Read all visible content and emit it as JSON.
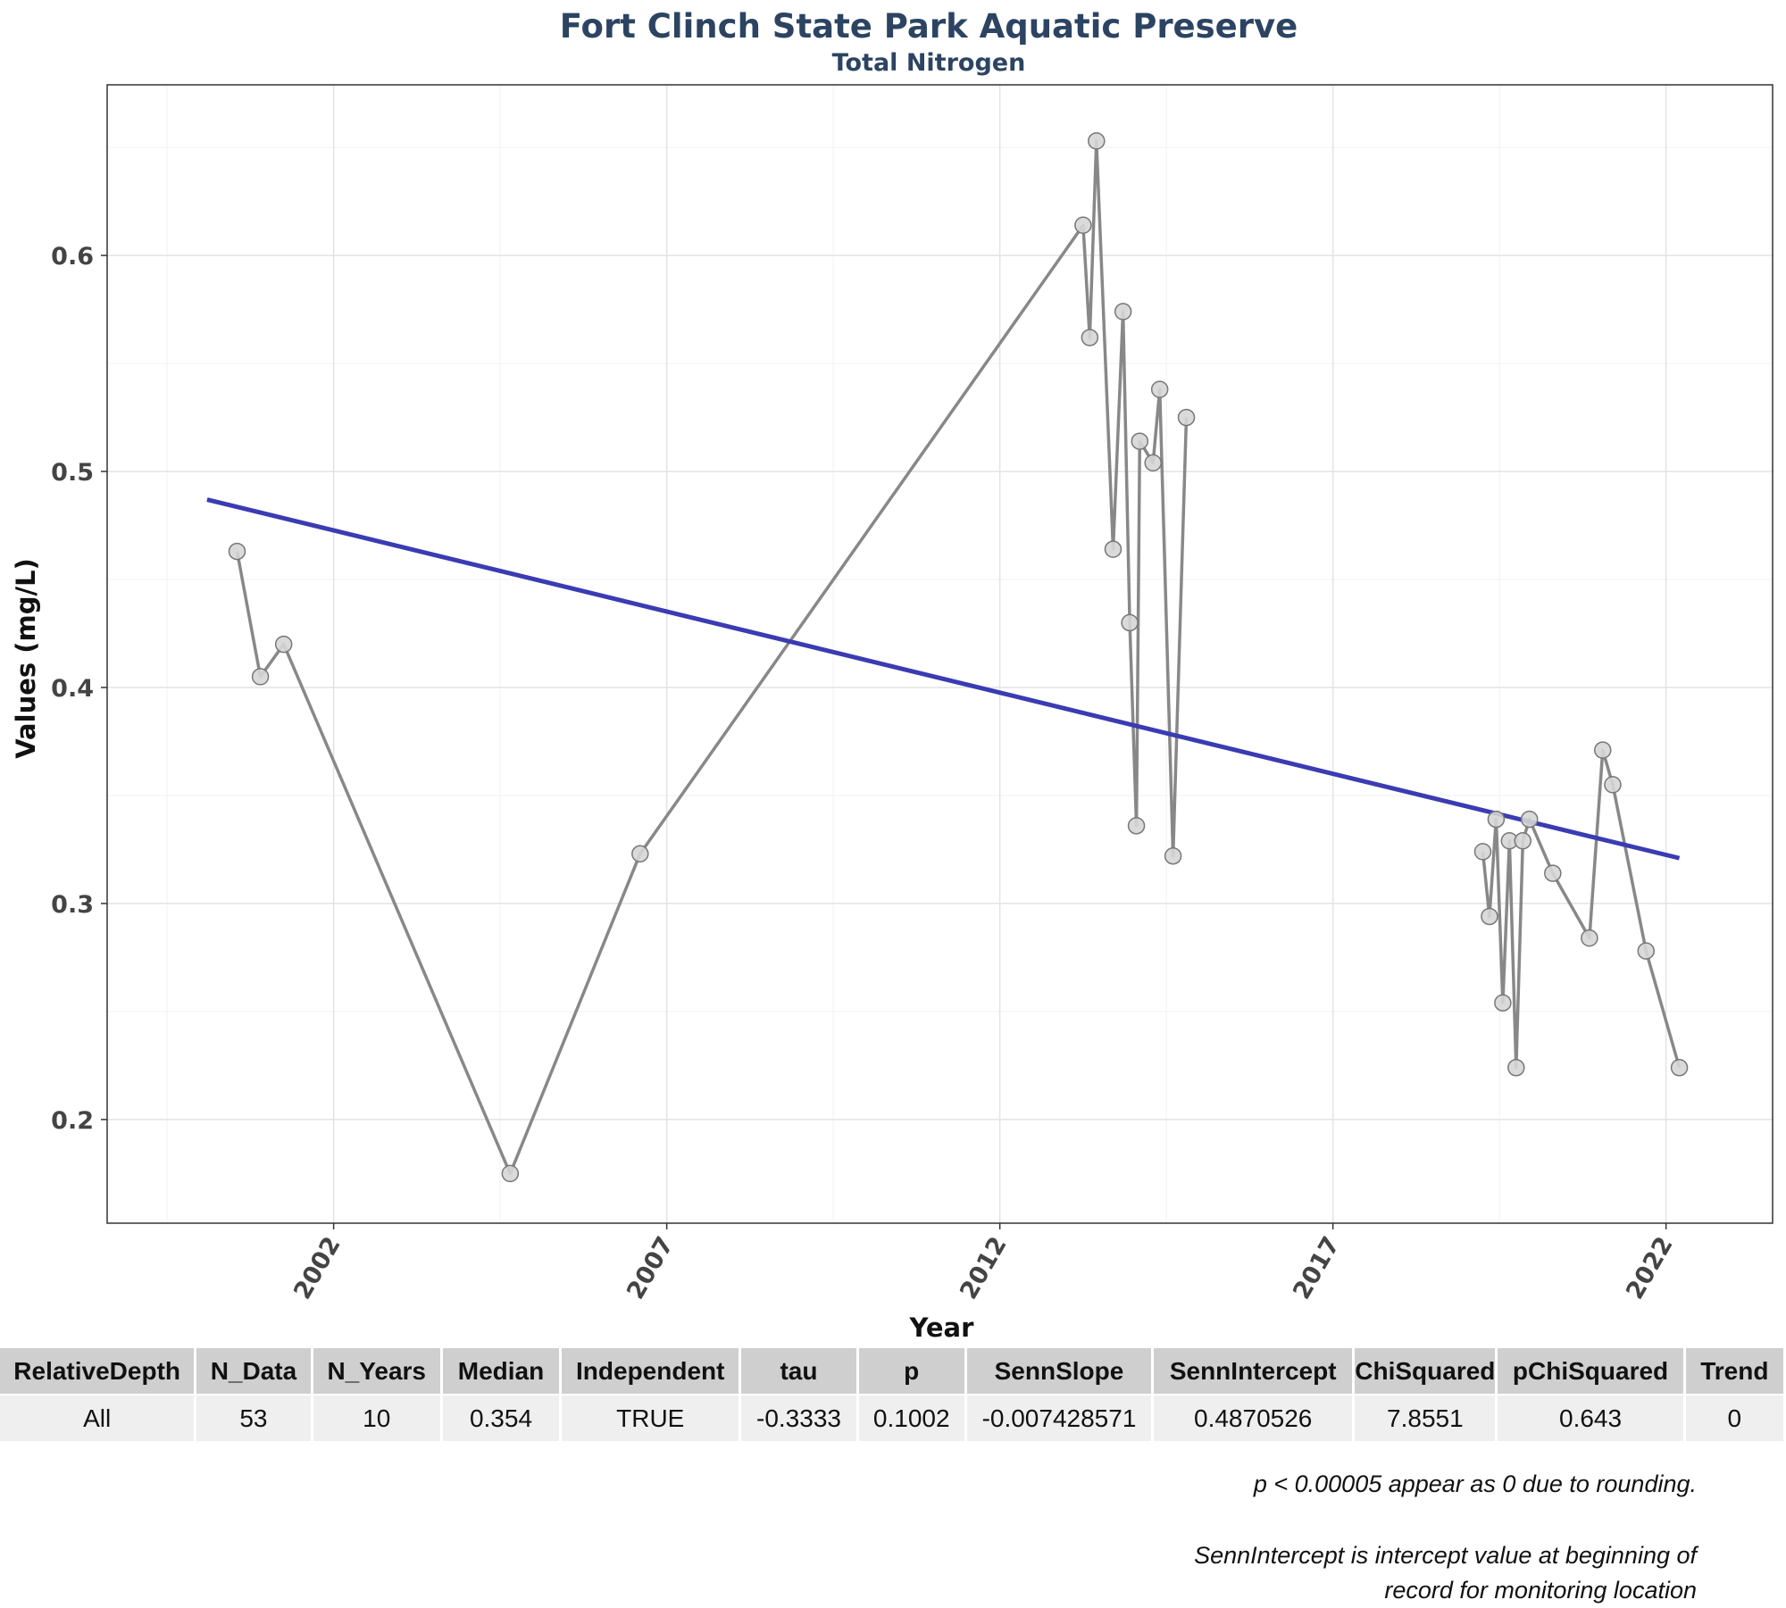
{
  "chart_data": {
    "type": "line",
    "title": "Fort Clinch State Park Aquatic Preserve",
    "subtitle": "Total Nitrogen",
    "xlabel": "Year",
    "ylabel": "Values (mg/L)",
    "xlim": [
      1998.6,
      2023.6
    ],
    "ylim": [
      0.152,
      0.679
    ],
    "xticks": [
      2002,
      2007,
      2012,
      2017,
      2022
    ],
    "yticks": [
      0.2,
      0.3,
      0.4,
      0.5,
      0.6
    ],
    "grid": true,
    "series": [
      {
        "x": [
          2000.55,
          2000.9,
          2001.25,
          2004.65,
          2006.6,
          2013.25,
          2013.35,
          2013.45,
          2013.7,
          2013.85,
          2013.95,
          2014.05,
          2014.1,
          2014.3,
          2014.4,
          2014.6,
          2014.8
        ],
        "y": [
          0.463,
          0.405,
          0.42,
          0.175,
          0.323,
          0.614,
          0.562,
          0.653,
          0.464,
          0.574,
          0.43,
          0.336,
          0.514,
          0.504,
          0.538,
          0.322,
          0.525
        ]
      },
      {
        "x": [
          2019.25,
          2019.35,
          2019.45,
          2019.55,
          2019.65,
          2019.75,
          2019.85,
          2019.95,
          2020.3,
          2020.85,
          2021.05,
          2021.2,
          2021.7,
          2022.2
        ],
        "y": [
          0.324,
          0.294,
          0.339,
          0.254,
          0.329,
          0.224,
          0.329,
          0.339,
          0.314,
          0.284,
          0.371,
          0.355,
          0.278,
          0.224
        ]
      }
    ],
    "trend_line": {
      "x": [
        2000.1,
        2022.2
      ],
      "y": [
        0.487,
        0.321
      ],
      "color": "#3b3bb3"
    },
    "series_color": "#888888",
    "point_fill": "#d6d6d6"
  },
  "table": {
    "headers": [
      "RelativeDepth",
      "N_Data",
      "N_Years",
      "Median",
      "Independent",
      "tau",
      "p",
      "SennSlope",
      "SennIntercept",
      "ChiSquared",
      "pChiSquared",
      "Trend"
    ],
    "rows": [
      [
        "All",
        "53",
        "10",
        "0.354",
        "TRUE",
        "-0.3333",
        "0.1002",
        "-0.007428571",
        "0.4870526",
        "7.8551",
        "0.643",
        "0"
      ]
    ]
  },
  "notes": {
    "rounding": "p < 0.00005 appear as 0 due to rounding.",
    "intercept_line1": "SennIntercept is intercept value at beginning of",
    "intercept_line2": "record for monitoring location"
  }
}
